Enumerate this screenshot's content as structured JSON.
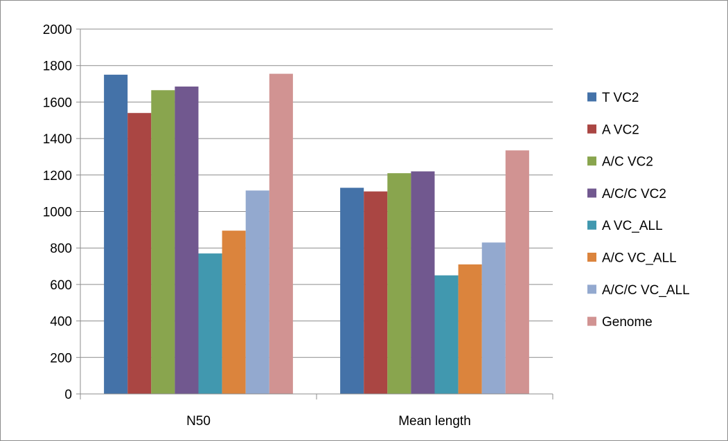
{
  "chart_data": {
    "type": "bar",
    "title": "",
    "xlabel": "",
    "ylabel": "",
    "categories": [
      "N50",
      "Mean length"
    ],
    "ylim": [
      0,
      2000
    ],
    "yticks": [
      0,
      200,
      400,
      600,
      800,
      1000,
      1200,
      1400,
      1600,
      1800,
      2000
    ],
    "grid": true,
    "legend_position": "right",
    "series": [
      {
        "name": "T VC2",
        "color": "#4472a8",
        "values": [
          1750,
          1130
        ]
      },
      {
        "name": "A VC2",
        "color": "#aa4643",
        "values": [
          1540,
          1110
        ]
      },
      {
        "name": "A/C VC2",
        "color": "#89a54e",
        "values": [
          1665,
          1210
        ]
      },
      {
        "name": "A/C/C VC2",
        "color": "#71588f",
        "values": [
          1685,
          1220
        ]
      },
      {
        "name": "A VC_ALL",
        "color": "#4198af",
        "values": [
          770,
          650
        ]
      },
      {
        "name": "A/C VC_ALL",
        "color": "#db843d",
        "values": [
          895,
          710
        ]
      },
      {
        "name": "A/C/C VC_ALL",
        "color": "#93a9cf",
        "values": [
          1115,
          830
        ]
      },
      {
        "name": "Genome",
        "color": "#d19392",
        "values": [
          1755,
          1335
        ]
      }
    ]
  }
}
